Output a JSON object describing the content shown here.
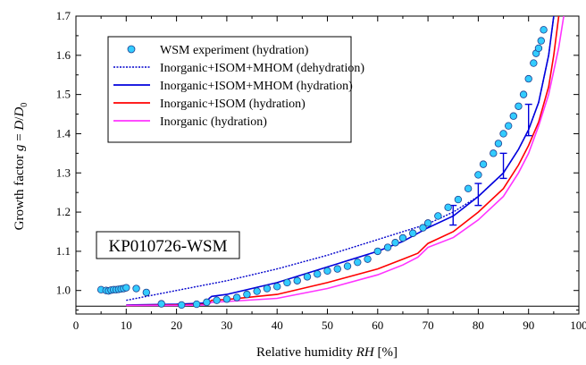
{
  "chart_data": {
    "type": "line",
    "xlabel": {
      "prefix": "Relative humidity ",
      "var": "RH",
      "suffix": " [%]"
    },
    "ylabel": {
      "prefix": "Growth factor  ",
      "var1": "g",
      "mid": " = ",
      "var2": "D",
      "slash": "/",
      "var3": "D",
      "sub": "0"
    },
    "xlim": [
      0,
      100
    ],
    "ylim": [
      0.94,
      1.7
    ],
    "xticks": [
      0,
      10,
      20,
      30,
      40,
      50,
      60,
      70,
      80,
      90,
      100
    ],
    "yticks": [
      1.0,
      1.1,
      1.2,
      1.3,
      1.4,
      1.5,
      1.6,
      1.7
    ],
    "ytick_labels": [
      "1.0",
      "1.1",
      "1.2",
      "1.3",
      "1.4",
      "1.5",
      "1.6",
      "1.7"
    ],
    "grid": false,
    "legend_position": "top-left",
    "annotation": "KP010726-WSM",
    "reference_line_y": 0.96,
    "series": [
      {
        "name": "WSM experiment (hydration)",
        "kind": "markers",
        "color": "#33ccff",
        "x": [
          5,
          6,
          6.5,
          7,
          7.5,
          8,
          8.5,
          9,
          9.5,
          10,
          12,
          14,
          17,
          21,
          24,
          26,
          28,
          30,
          32,
          34,
          36,
          38,
          40,
          42,
          44,
          46,
          48,
          50,
          52,
          54,
          56,
          58,
          60,
          62,
          63.5,
          65,
          67,
          69,
          70,
          72,
          74,
          76,
          78,
          80,
          81,
          83,
          84,
          85,
          86,
          87,
          88,
          89,
          90,
          91,
          91.5,
          92,
          92.5,
          93
        ],
        "y": [
          1.002,
          1.0,
          0.999,
          1.001,
          1.002,
          1.002,
          1.003,
          1.004,
          1.005,
          1.007,
          1.005,
          0.995,
          0.966,
          0.963,
          0.965,
          0.97,
          0.975,
          0.978,
          0.982,
          0.99,
          0.998,
          1.005,
          1.01,
          1.02,
          1.025,
          1.035,
          1.042,
          1.05,
          1.055,
          1.062,
          1.072,
          1.08,
          1.1,
          1.11,
          1.122,
          1.134,
          1.146,
          1.16,
          1.172,
          1.19,
          1.212,
          1.232,
          1.26,
          1.295,
          1.322,
          1.35,
          1.375,
          1.4,
          1.42,
          1.445,
          1.47,
          1.5,
          1.54,
          1.58,
          1.605,
          1.618,
          1.637,
          1.665
        ]
      },
      {
        "name": "Inorganic+ISOM+MHOM (dehydration)",
        "kind": "line",
        "dash": true,
        "color": "#0000cc",
        "x": [
          10,
          20,
          30,
          40,
          50,
          60,
          65,
          70,
          75,
          80,
          85,
          88,
          90,
          92,
          93,
          94,
          95
        ],
        "y": [
          0.975,
          1.0,
          1.025,
          1.055,
          1.09,
          1.13,
          1.15,
          1.17,
          1.2,
          1.24,
          1.3,
          1.36,
          1.41,
          1.48,
          1.54,
          1.6,
          1.7
        ]
      },
      {
        "name": "Inorganic+ISOM+MHOM (hydration)",
        "kind": "line",
        "dash": false,
        "color": "#0000dd",
        "x": [
          10,
          20,
          26,
          26.5,
          27,
          30,
          40,
          50,
          60,
          65,
          70,
          75,
          80,
          85,
          88,
          90,
          92,
          93,
          94,
          95
        ],
        "y": [
          0.963,
          0.965,
          0.968,
          0.98,
          0.985,
          0.99,
          1.02,
          1.06,
          1.1,
          1.125,
          1.16,
          1.19,
          1.24,
          1.3,
          1.36,
          1.41,
          1.48,
          1.54,
          1.6,
          1.7
        ]
      },
      {
        "name": "Inorganic+ISOM (hydration)",
        "kind": "line",
        "dash": false,
        "color": "#ff0000",
        "x": [
          10,
          20,
          26,
          27,
          30,
          40,
          50,
          60,
          65,
          68,
          70,
          75,
          80,
          85,
          88,
          90,
          92,
          94,
          95,
          96
        ],
        "y": [
          0.962,
          0.963,
          0.965,
          0.975,
          0.977,
          0.99,
          1.02,
          1.055,
          1.08,
          1.095,
          1.12,
          1.15,
          1.2,
          1.26,
          1.32,
          1.37,
          1.43,
          1.52,
          1.6,
          1.7
        ]
      },
      {
        "name": "Inorganic (hydration)",
        "kind": "line",
        "dash": false,
        "color": "#ff33ff",
        "x": [
          10,
          20,
          26,
          27,
          30,
          40,
          50,
          60,
          65,
          68,
          70,
          75,
          80,
          85,
          88,
          90,
          92,
          94,
          95,
          96,
          97
        ],
        "y": [
          0.962,
          0.962,
          0.963,
          0.97,
          0.972,
          0.98,
          1.005,
          1.04,
          1.065,
          1.085,
          1.11,
          1.135,
          1.18,
          1.24,
          1.3,
          1.35,
          1.42,
          1.5,
          1.56,
          1.62,
          1.7
        ]
      }
    ],
    "error_bars": {
      "color": "#0000dd",
      "x": [
        75,
        80,
        85,
        90
      ],
      "y": [
        1.192,
        1.245,
        1.318,
        1.435
      ],
      "err": [
        0.025,
        0.028,
        0.032,
        0.04
      ]
    }
  }
}
